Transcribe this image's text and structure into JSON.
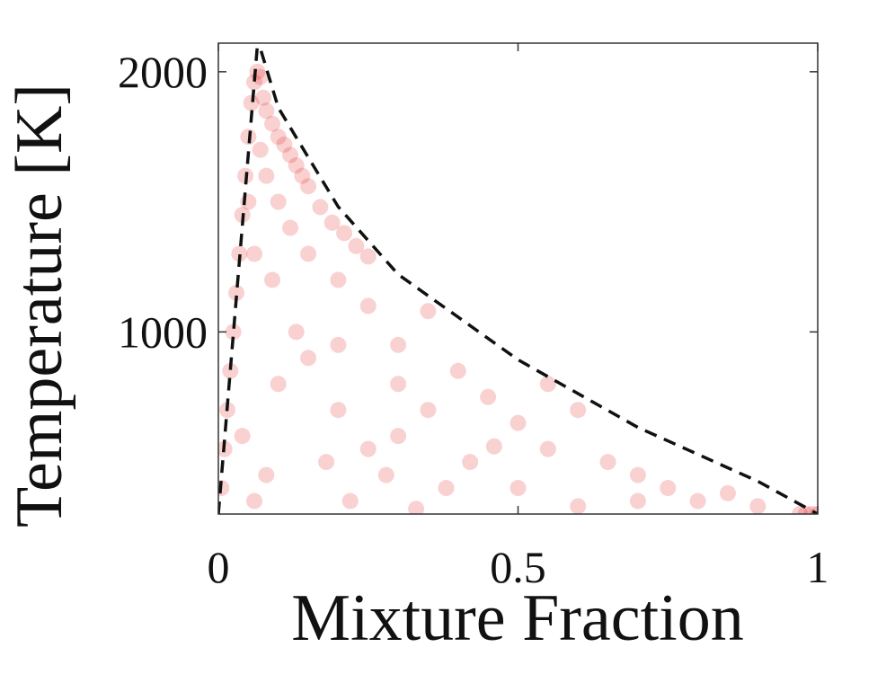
{
  "chart_data": {
    "type": "scatter",
    "xlabel": "Mixture Fraction",
    "ylabel": "Temperature [K]",
    "xlim": [
      0,
      1
    ],
    "ylim": [
      300,
      2110
    ],
    "xticks": [
      0,
      0.5,
      1
    ],
    "yticks": [
      1000,
      2000
    ],
    "series": [
      {
        "type": "scatter",
        "color": "#e00000",
        "opacity": 0.18,
        "x": [
          0.005,
          0.01,
          0.015,
          0.02,
          0.025,
          0.03,
          0.035,
          0.04,
          0.045,
          0.05,
          0.055,
          0.06,
          0.065,
          0.07,
          0.075,
          0.08,
          0.09,
          0.1,
          0.11,
          0.12,
          0.13,
          0.14,
          0.15,
          0.17,
          0.19,
          0.21,
          0.23,
          0.25,
          0.05,
          0.07,
          0.08,
          0.06,
          0.1,
          0.12,
          0.09,
          0.15,
          0.2,
          0.25,
          0.35,
          0.3,
          0.15,
          0.1,
          0.2,
          0.3,
          0.4,
          0.45,
          0.5,
          0.55,
          0.6,
          0.65,
          0.7,
          0.75,
          0.8,
          0.85,
          0.9,
          0.42,
          0.38,
          0.28,
          0.18,
          0.08,
          0.04,
          0.06,
          0.22,
          0.33,
          0.5,
          0.6,
          0.7,
          0.13,
          0.35,
          0.46,
          0.2,
          0.3,
          0.55,
          0.25,
          0.97,
          0.98,
          0.99,
          1.0
        ],
        "values": [
          400,
          550,
          700,
          850,
          1000,
          1150,
          1300,
          1450,
          1600,
          1750,
          1880,
          1960,
          2000,
          1980,
          1900,
          1850,
          1800,
          1750,
          1720,
          1680,
          1640,
          1600,
          1560,
          1480,
          1420,
          1380,
          1330,
          1290,
          1500,
          1700,
          1600,
          1300,
          1500,
          1400,
          1200,
          1300,
          1200,
          1100,
          1080,
          950,
          900,
          800,
          700,
          600,
          850,
          750,
          650,
          550,
          700,
          500,
          450,
          400,
          350,
          380,
          330,
          500,
          400,
          450,
          500,
          450,
          600,
          350,
          350,
          320,
          400,
          330,
          350,
          1000,
          700,
          560,
          950,
          800,
          800,
          550,
          300,
          300,
          300,
          300
        ]
      },
      {
        "type": "line",
        "color": "#111111",
        "dashed": true,
        "x": [
          0,
          0.02,
          0.04,
          0.055,
          0.065,
          0.07,
          0.1,
          0.15,
          0.2,
          0.3,
          0.5,
          0.7,
          0.9,
          1.0
        ],
        "values": [
          300,
          854,
          1408,
          1823,
          2097,
          2090,
          1862,
          1671,
          1481,
          1221,
          893,
          633,
          426,
          300
        ]
      }
    ]
  }
}
